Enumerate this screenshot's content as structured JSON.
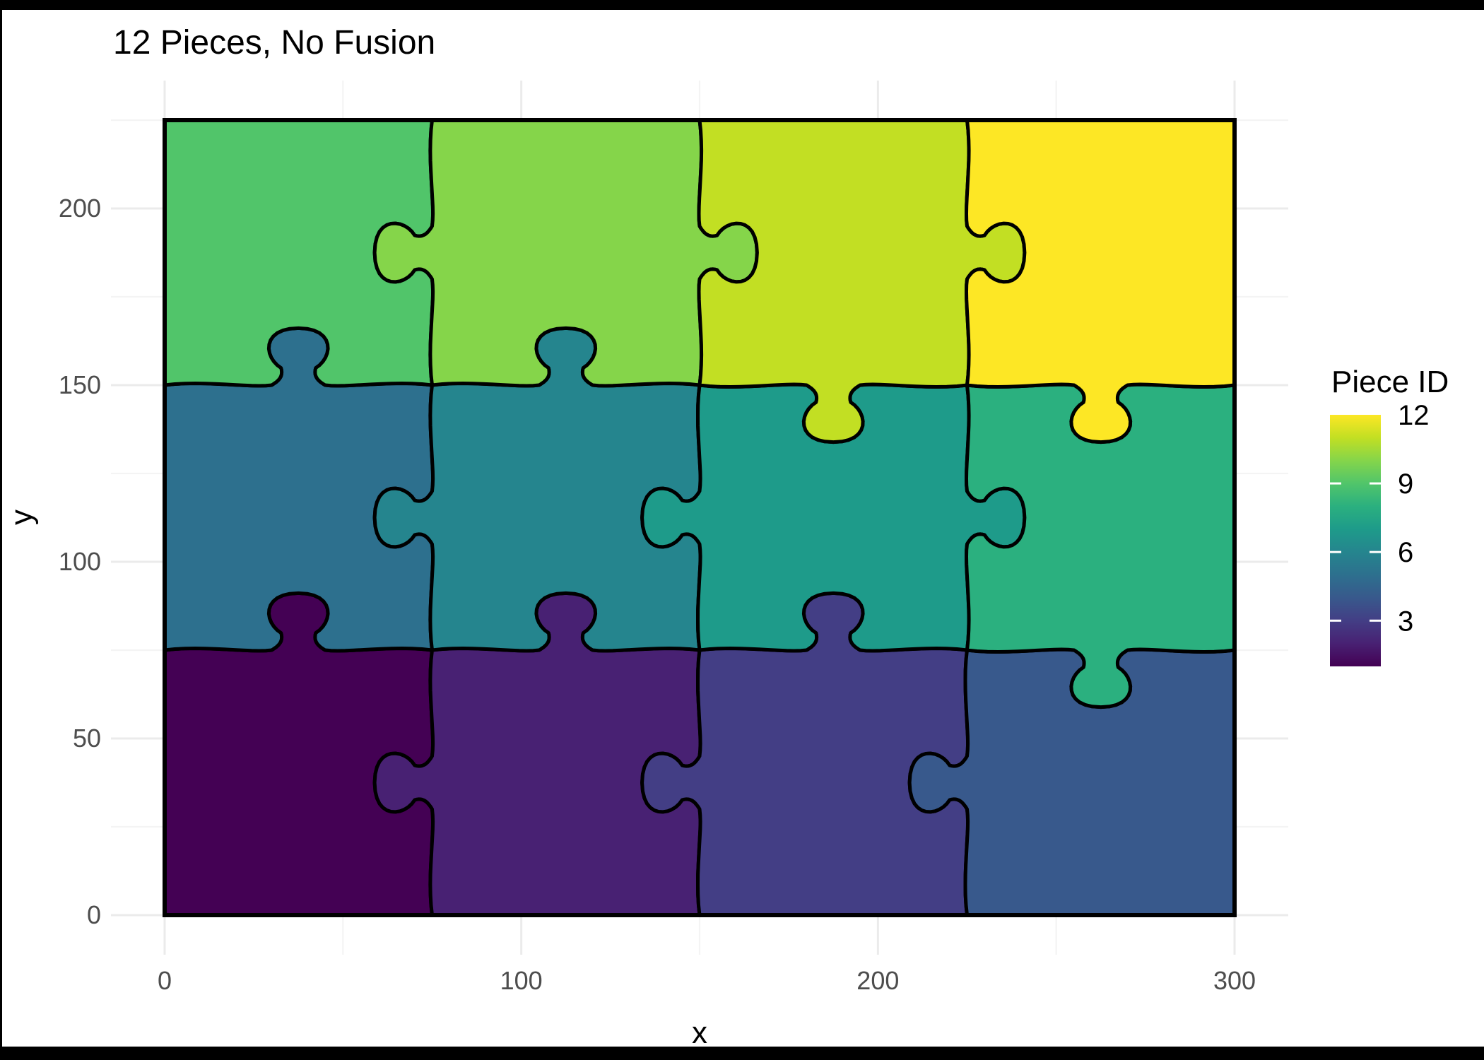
{
  "chart": {
    "title": "12 Pieces, No Fusion"
  },
  "axes": {
    "x": {
      "label": "x",
      "range": [
        0,
        300
      ],
      "major_ticks": [
        {
          "v": 0,
          "label": "0"
        },
        {
          "v": 100,
          "label": "100"
        },
        {
          "v": 200,
          "label": "200"
        },
        {
          "v": 300,
          "label": "300"
        }
      ],
      "minor_ticks": [
        50,
        150,
        250
      ]
    },
    "y": {
      "label": "y",
      "range": [
        0,
        225
      ],
      "major_ticks": [
        {
          "v": 0,
          "label": "0"
        },
        {
          "v": 50,
          "label": "50"
        },
        {
          "v": 100,
          "label": "100"
        },
        {
          "v": 150,
          "label": "150"
        },
        {
          "v": 200,
          "label": "200"
        }
      ],
      "minor_ticks": [
        25,
        75,
        125,
        175,
        225
      ]
    }
  },
  "legend": {
    "title": "Piece ID",
    "value_range": [
      1,
      12
    ],
    "ticks": [
      {
        "v": 12,
        "label": "12"
      },
      {
        "v": 9,
        "label": "9"
      },
      {
        "v": 6,
        "label": "6"
      },
      {
        "v": 3,
        "label": "3"
      }
    ],
    "tick_mark_values": [
      9,
      6,
      3
    ],
    "gradient_stops": [
      "#440154",
      "#482173",
      "#433E85",
      "#38598C",
      "#2D708E",
      "#25858E",
      "#1E9B8A",
      "#2BB07F",
      "#51C56A",
      "#85D54A",
      "#C2DF23",
      "#FDE725"
    ]
  },
  "chart_data": {
    "type": "jigsaw_puzzle_grid",
    "title": "12 Pieces, No Fusion",
    "cols": 4,
    "rows": 3,
    "cell_size": 75,
    "x_range": [
      0,
      300
    ],
    "y_range": [
      0,
      225
    ],
    "pieces": [
      {
        "id": 1,
        "row": 0,
        "col": 0,
        "color": "#440154"
      },
      {
        "id": 2,
        "row": 0,
        "col": 1,
        "color": "#482173"
      },
      {
        "id": 3,
        "row": 0,
        "col": 2,
        "color": "#433E85"
      },
      {
        "id": 4,
        "row": 0,
        "col": 3,
        "color": "#38598C"
      },
      {
        "id": 5,
        "row": 1,
        "col": 0,
        "color": "#2D708E"
      },
      {
        "id": 6,
        "row": 1,
        "col": 1,
        "color": "#25858E"
      },
      {
        "id": 7,
        "row": 1,
        "col": 2,
        "color": "#1E9B8A"
      },
      {
        "id": 8,
        "row": 1,
        "col": 3,
        "color": "#2BB07F"
      },
      {
        "id": 9,
        "row": 2,
        "col": 0,
        "color": "#51C56A"
      },
      {
        "id": 10,
        "row": 2,
        "col": 1,
        "color": "#85D54A"
      },
      {
        "id": 11,
        "row": 2,
        "col": 2,
        "color": "#C2DF23"
      },
      {
        "id": 12,
        "row": 2,
        "col": 3,
        "color": "#FDE725"
      }
    ],
    "vertical_tabs": [
      [
        -1,
        -1,
        -1
      ],
      [
        -1,
        -1,
        1
      ],
      [
        -1,
        1,
        1
      ]
    ],
    "horizontal_tabs": [
      [
        1,
        1,
        1,
        -1
      ],
      [
        1,
        1,
        -1,
        -1
      ]
    ],
    "outline_color": "#000000"
  },
  "style": {
    "canvas_bg": "#000000",
    "plot_bg": "#FFFFFF",
    "grid_major": "#EBEBEB",
    "grid_minor": "#F4F4F4",
    "tick_text_color": "#4D4D4D",
    "text_color": "#000000"
  }
}
